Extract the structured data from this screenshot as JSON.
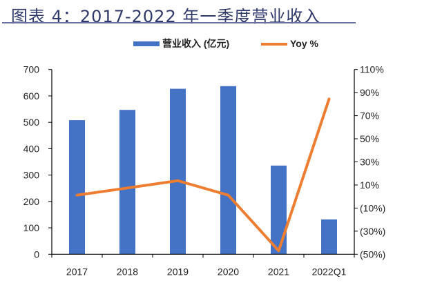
{
  "title": "图表 4：2017-2022 年一季度营业收入",
  "chart_data": {
    "type": "bar+line",
    "title": "图表 4：2017-2022 年一季度营业收入",
    "categories": [
      "2017",
      "2018",
      "2019",
      "2020",
      "2021",
      "2022Q1"
    ],
    "series": [
      {
        "name": "营业收入 (亿元)",
        "type": "bar",
        "axis": "left",
        "color": "#4472c4",
        "values": [
          508,
          547,
          627,
          637,
          336,
          132
        ]
      },
      {
        "name": "Yoy %",
        "type": "line",
        "axis": "right",
        "color": "#ed7d31",
        "values": [
          1.2,
          7.4,
          13.7,
          1.2,
          -47,
          84.5
        ]
      }
    ],
    "left_axis": {
      "ylim": [
        0,
        700
      ],
      "ticks": [
        "0",
        "100",
        "200",
        "300",
        "400",
        "500",
        "600",
        "700"
      ]
    },
    "right_axis": {
      "ylim": [
        -50,
        110
      ],
      "ticks": [
        "(50%)",
        "(30%)",
        "(10%)",
        "10%",
        "30%",
        "50%",
        "70%",
        "90%",
        "110%"
      ]
    },
    "legend_position": "top-center",
    "grid": false
  }
}
